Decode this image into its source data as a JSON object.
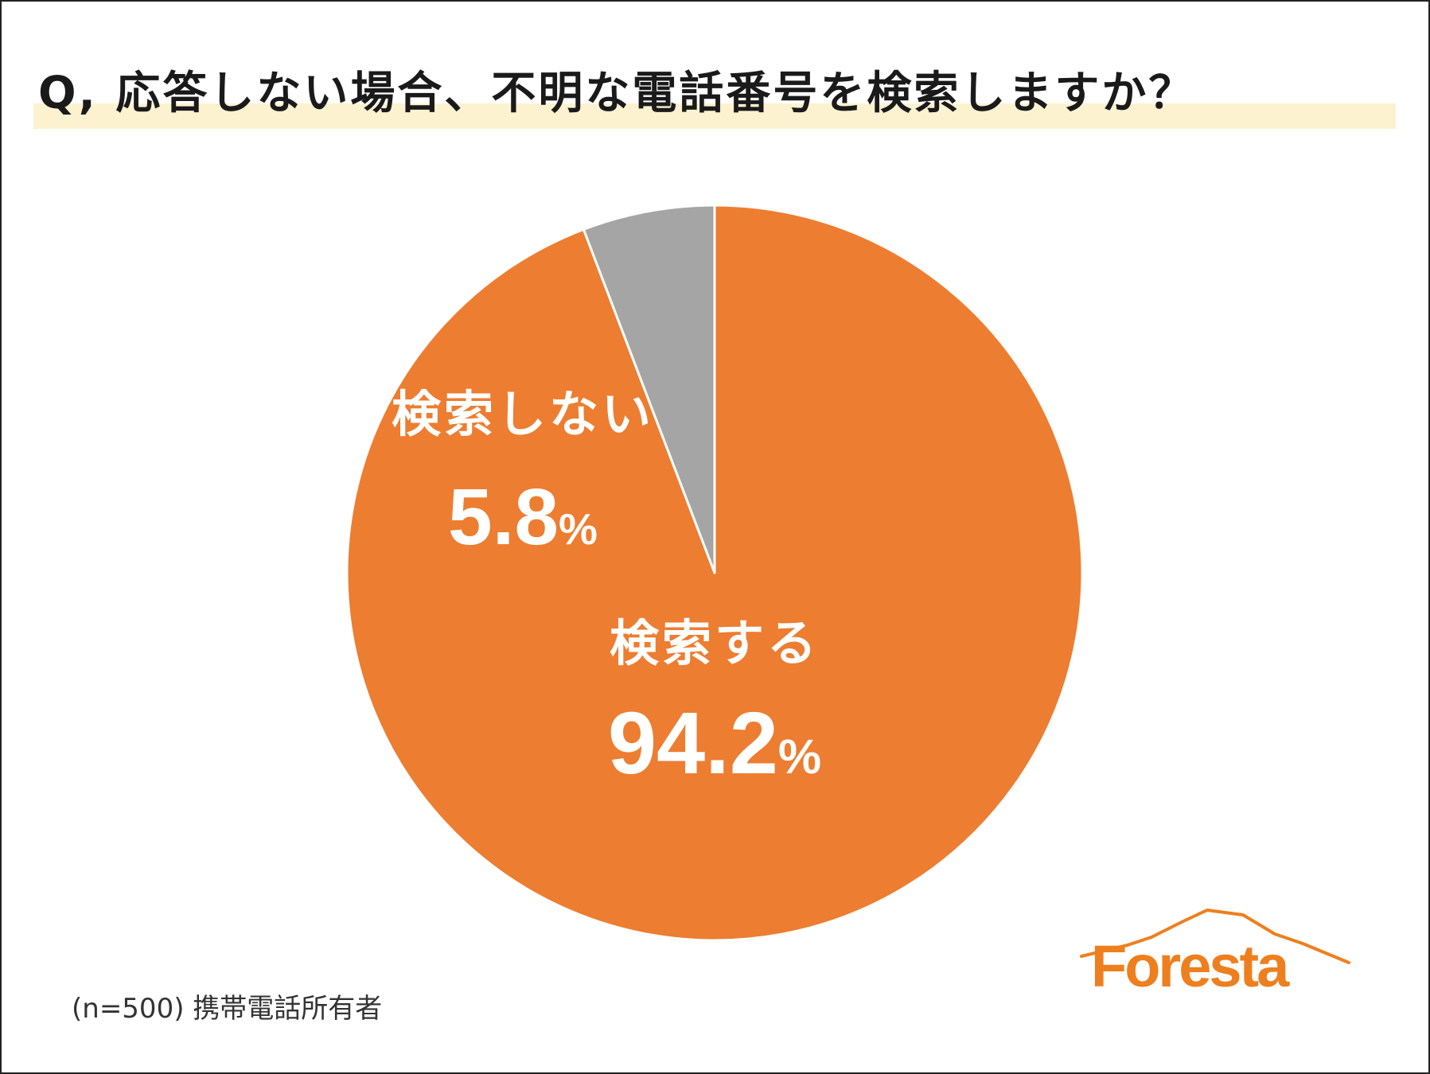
{
  "title": "Q, 応答しない場合、不明な電話番号を検索しますか？",
  "note": "(n=500) 携帯電話所有者",
  "logo_text": "Foresta",
  "colors": {
    "orange": "#ed7d31",
    "gray": "#a5a5a5",
    "title_band": "#fdf2d0",
    "logo": "#ee7f1f"
  },
  "chart_data": {
    "type": "pie",
    "title": "Q, 応答しない場合、不明な電話番号を検索しますか？",
    "start": "12 o'clock",
    "direction": "clockwise",
    "slices": [
      {
        "label": "検索する",
        "value": 94.2,
        "value_text": "94.2",
        "unit": "%",
        "color": "#ed7d31"
      },
      {
        "label": "検索しない",
        "value": 5.8,
        "value_text": "5.8",
        "unit": "%",
        "color": "#a5a5a5"
      }
    ]
  }
}
